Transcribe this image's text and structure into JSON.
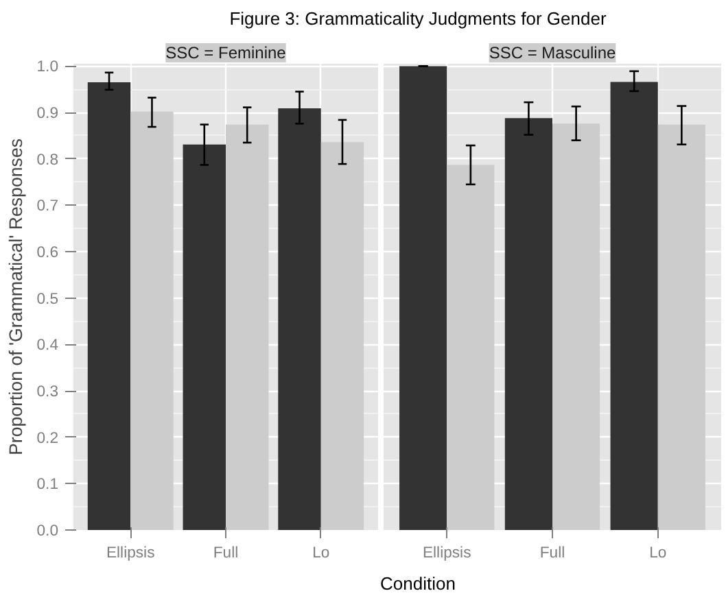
{
  "chart_data": [
    {
      "type": "bar",
      "title": "Figure 3: Grammaticality Judgments for Gender",
      "subtitle": "SSC = Feminine",
      "xlabel": "Condition",
      "ylabel": "Proportion of 'Grammatical' Responses",
      "categories": [
        "Ellipsis",
        "Full",
        "Lo"
      ],
      "series": [
        {
          "color": "#333333",
          "values": [
            0.965,
            0.831,
            0.909
          ],
          "errors": [
            [
              0.949,
              0.986
            ],
            [
              0.787,
              0.874
            ],
            [
              0.876,
              0.945
            ]
          ]
        },
        {
          "color": "#cccccc",
          "values": [
            0.902,
            0.874,
            0.836
          ],
          "errors": [
            [
              0.869,
              0.932
            ],
            [
              0.835,
              0.911
            ],
            [
              0.789,
              0.884
            ]
          ]
        }
      ],
      "ylim": [
        0,
        1.005
      ],
      "yticks": [
        {
          "value": 0,
          "label": "0.0"
        },
        0.1,
        0.2,
        0.3,
        0.4,
        0.5,
        0.6,
        0.7,
        0.8,
        0.9,
        {
          "value": 1,
          "label": "1.0"
        }
      ],
      "grid": true
    },
    {
      "type": "bar",
      "subtitle": "SSC = Masculine",
      "categories": [
        "Ellipsis",
        "Full",
        "Lo"
      ],
      "series": [
        {
          "color": "#333333",
          "values": [
            1.0,
            0.888,
            0.966
          ],
          "errors": [
            [
              1.0,
              1.0
            ],
            [
              0.852,
              0.922
            ],
            [
              0.946,
              0.989
            ]
          ]
        },
        {
          "color": "#cccccc",
          "values": [
            0.787,
            0.876,
            0.874
          ],
          "errors": [
            [
              0.745,
              0.829
            ],
            [
              0.84,
              0.913
            ],
            [
              0.831,
              0.914
            ]
          ]
        }
      ],
      "ylim": [
        0,
        1.005
      ],
      "yticks": [
        0,
        0.1,
        0.2,
        0.3,
        0.4,
        0.5,
        0.6,
        0.7,
        0.8,
        0.9,
        1
      ],
      "grid": true,
      "tick_labels": "x"
    }
  ]
}
